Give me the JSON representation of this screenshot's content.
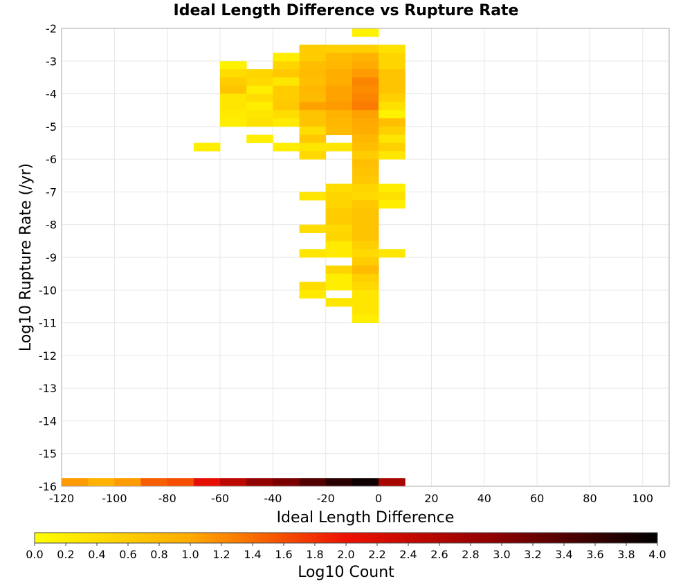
{
  "chart_data": {
    "type": "heatmap",
    "title": "Ideal Length Difference vs Rupture Rate",
    "xlabel": "Ideal Length Difference",
    "ylabel": "Log10 Rupture Rate (/yr)",
    "xlim": [
      -120,
      110
    ],
    "ylim": [
      -16,
      -2
    ],
    "xticks": [
      "-120",
      "-100",
      "-80",
      "-60",
      "-40",
      "-20",
      "0",
      "20",
      "40",
      "60",
      "80",
      "100"
    ],
    "yticks": [
      "-2",
      "-3",
      "-4",
      "-5",
      "-6",
      "-7",
      "-8",
      "-9",
      "-10",
      "-11",
      "-12",
      "-13",
      "-14",
      "-15",
      "-16"
    ],
    "x_bin_width": 10,
    "y_bin_height": 0.25,
    "grid": true,
    "colorbar": {
      "label": "Log10 Count",
      "min": 0,
      "max": 4,
      "ticks": [
        "0.0",
        "0.2",
        "0.4",
        "0.6",
        "0.8",
        "1.0",
        "1.2",
        "1.4",
        "1.6",
        "1.8",
        "2.0",
        "2.2",
        "2.4",
        "2.6",
        "2.8",
        "3.0",
        "3.2",
        "3.4",
        "3.6",
        "3.8",
        "4.0"
      ],
      "colormap": [
        "#ffff00",
        "#ffaa00",
        "#ee1100",
        "#880000",
        "#000000"
      ]
    },
    "cells": [
      {
        "x": -5,
        "y": -2.0,
        "v": 0.15
      },
      {
        "x": -25,
        "y": -2.5,
        "v": 0.6
      },
      {
        "x": -15,
        "y": -2.5,
        "v": 0.55
      },
      {
        "x": -5,
        "y": -2.5,
        "v": 0.55
      },
      {
        "x": 5,
        "y": -2.5,
        "v": 0.35
      },
      {
        "x": -35,
        "y": -2.75,
        "v": 0.2
      },
      {
        "x": -25,
        "y": -2.75,
        "v": 0.6
      },
      {
        "x": -15,
        "y": -2.75,
        "v": 0.8
      },
      {
        "x": -5,
        "y": -2.75,
        "v": 0.9
      },
      {
        "x": 5,
        "y": -2.75,
        "v": 0.5
      },
      {
        "x": -55,
        "y": -3.0,
        "v": 0.15
      },
      {
        "x": -35,
        "y": -3.0,
        "v": 0.5
      },
      {
        "x": -25,
        "y": -3.0,
        "v": 0.75
      },
      {
        "x": -15,
        "y": -3.0,
        "v": 0.85
      },
      {
        "x": -5,
        "y": -3.0,
        "v": 1.0
      },
      {
        "x": 5,
        "y": -3.0,
        "v": 0.5
      },
      {
        "x": -55,
        "y": -3.25,
        "v": 0.4
      },
      {
        "x": -45,
        "y": -3.25,
        "v": 0.5
      },
      {
        "x": -35,
        "y": -3.25,
        "v": 0.65
      },
      {
        "x": -25,
        "y": -3.25,
        "v": 0.8
      },
      {
        "x": -15,
        "y": -3.25,
        "v": 0.95
      },
      {
        "x": -5,
        "y": -3.25,
        "v": 1.1
      },
      {
        "x": 5,
        "y": -3.25,
        "v": 0.7
      },
      {
        "x": -55,
        "y": -3.5,
        "v": 0.6
      },
      {
        "x": -45,
        "y": -3.5,
        "v": 0.45
      },
      {
        "x": -35,
        "y": -3.5,
        "v": 0.3
      },
      {
        "x": -25,
        "y": -3.5,
        "v": 0.75
      },
      {
        "x": -15,
        "y": -3.5,
        "v": 0.95
      },
      {
        "x": -5,
        "y": -3.5,
        "v": 1.25
      },
      {
        "x": 5,
        "y": -3.5,
        "v": 0.7
      },
      {
        "x": -55,
        "y": -3.75,
        "v": 0.7
      },
      {
        "x": -45,
        "y": -3.75,
        "v": 0.2
      },
      {
        "x": -35,
        "y": -3.75,
        "v": 0.6
      },
      {
        "x": -25,
        "y": -3.75,
        "v": 0.85
      },
      {
        "x": -15,
        "y": -3.75,
        "v": 1.05
      },
      {
        "x": -5,
        "y": -3.75,
        "v": 1.2
      },
      {
        "x": 5,
        "y": -3.75,
        "v": 0.7
      },
      {
        "x": -55,
        "y": -4.0,
        "v": 0.3
      },
      {
        "x": -45,
        "y": -4.0,
        "v": 0.4
      },
      {
        "x": -35,
        "y": -4.0,
        "v": 0.6
      },
      {
        "x": -25,
        "y": -4.0,
        "v": 0.8
      },
      {
        "x": -15,
        "y": -4.0,
        "v": 1.05
      },
      {
        "x": -5,
        "y": -4.0,
        "v": 1.25
      },
      {
        "x": 5,
        "y": -4.0,
        "v": 0.55
      },
      {
        "x": -55,
        "y": -4.25,
        "v": 0.3
      },
      {
        "x": -45,
        "y": -4.25,
        "v": 0.2
      },
      {
        "x": -35,
        "y": -4.25,
        "v": 0.65
      },
      {
        "x": -25,
        "y": -4.25,
        "v": 1.05
      },
      {
        "x": -15,
        "y": -4.25,
        "v": 1.1
      },
      {
        "x": -5,
        "y": -4.25,
        "v": 1.3
      },
      {
        "x": 5,
        "y": -4.25,
        "v": 0.35
      },
      {
        "x": -55,
        "y": -4.5,
        "v": 0.25
      },
      {
        "x": -45,
        "y": -4.5,
        "v": 0.3
      },
      {
        "x": -35,
        "y": -4.5,
        "v": 0.4
      },
      {
        "x": -25,
        "y": -4.5,
        "v": 0.7
      },
      {
        "x": -15,
        "y": -4.5,
        "v": 0.9
      },
      {
        "x": -5,
        "y": -4.5,
        "v": 1.05
      },
      {
        "x": 5,
        "y": -4.5,
        "v": 0.15
      },
      {
        "x": -55,
        "y": -4.75,
        "v": 0.2
      },
      {
        "x": -45,
        "y": -4.75,
        "v": 0.35
      },
      {
        "x": -35,
        "y": -4.75,
        "v": 0.25
      },
      {
        "x": -25,
        "y": -4.75,
        "v": 0.7
      },
      {
        "x": -15,
        "y": -4.75,
        "v": 0.85
      },
      {
        "x": -5,
        "y": -4.75,
        "v": 1.0
      },
      {
        "x": 5,
        "y": -4.75,
        "v": 0.75
      },
      {
        "x": -25,
        "y": -5.0,
        "v": 0.4
      },
      {
        "x": -15,
        "y": -5.0,
        "v": 0.8
      },
      {
        "x": -5,
        "y": -5.0,
        "v": 0.95
      },
      {
        "x": 5,
        "y": -5.0,
        "v": 0.55
      },
      {
        "x": -45,
        "y": -5.25,
        "v": 0.2
      },
      {
        "x": -25,
        "y": -5.25,
        "v": 0.65
      },
      {
        "x": -5,
        "y": -5.25,
        "v": 0.85
      },
      {
        "x": 5,
        "y": -5.25,
        "v": 0.3
      },
      {
        "x": -65,
        "y": -5.5,
        "v": 0.2
      },
      {
        "x": -35,
        "y": -5.5,
        "v": 0.2
      },
      {
        "x": -25,
        "y": -5.5,
        "v": 0.3
      },
      {
        "x": -15,
        "y": -5.5,
        "v": 0.3
      },
      {
        "x": -5,
        "y": -5.5,
        "v": 0.75
      },
      {
        "x": 5,
        "y": -5.5,
        "v": 0.55
      },
      {
        "x": -25,
        "y": -5.75,
        "v": 0.45
      },
      {
        "x": -5,
        "y": -5.75,
        "v": 0.6
      },
      {
        "x": 5,
        "y": -5.75,
        "v": 0.3
      },
      {
        "x": -5,
        "y": -6.0,
        "v": 0.75
      },
      {
        "x": -5,
        "y": -6.25,
        "v": 0.7
      },
      {
        "x": -5,
        "y": -6.5,
        "v": 0.65
      },
      {
        "x": -15,
        "y": -6.75,
        "v": 0.4
      },
      {
        "x": -5,
        "y": -6.75,
        "v": 0.5
      },
      {
        "x": 5,
        "y": -6.75,
        "v": 0.2
      },
      {
        "x": -25,
        "y": -7.0,
        "v": 0.3
      },
      {
        "x": -15,
        "y": -7.0,
        "v": 0.5
      },
      {
        "x": -5,
        "y": -7.0,
        "v": 0.45
      },
      {
        "x": 5,
        "y": -7.0,
        "v": 0.35
      },
      {
        "x": -15,
        "y": -7.25,
        "v": 0.5
      },
      {
        "x": -5,
        "y": -7.25,
        "v": 0.65
      },
      {
        "x": 5,
        "y": -7.25,
        "v": 0.2
      },
      {
        "x": -15,
        "y": -7.5,
        "v": 0.6
      },
      {
        "x": -5,
        "y": -7.5,
        "v": 0.7
      },
      {
        "x": -15,
        "y": -7.75,
        "v": 0.6
      },
      {
        "x": -5,
        "y": -7.75,
        "v": 0.7
      },
      {
        "x": -25,
        "y": -8.0,
        "v": 0.4
      },
      {
        "x": -15,
        "y": -8.0,
        "v": 0.45
      },
      {
        "x": -5,
        "y": -8.0,
        "v": 0.7
      },
      {
        "x": -15,
        "y": -8.25,
        "v": 0.5
      },
      {
        "x": -5,
        "y": -8.25,
        "v": 0.7
      },
      {
        "x": -15,
        "y": -8.5,
        "v": 0.25
      },
      {
        "x": -5,
        "y": -8.5,
        "v": 0.55
      },
      {
        "x": -25,
        "y": -8.75,
        "v": 0.3
      },
      {
        "x": -15,
        "y": -8.75,
        "v": 0.25
      },
      {
        "x": -5,
        "y": -8.75,
        "v": 0.45
      },
      {
        "x": 5,
        "y": -8.75,
        "v": 0.3
      },
      {
        "x": -5,
        "y": -9.0,
        "v": 0.6
      },
      {
        "x": -15,
        "y": -9.25,
        "v": 0.5
      },
      {
        "x": -5,
        "y": -9.25,
        "v": 0.8
      },
      {
        "x": -15,
        "y": -9.5,
        "v": 0.2
      },
      {
        "x": -5,
        "y": -9.5,
        "v": 0.55
      },
      {
        "x": -25,
        "y": -9.75,
        "v": 0.4
      },
      {
        "x": -15,
        "y": -9.75,
        "v": 0.2
      },
      {
        "x": -5,
        "y": -9.75,
        "v": 0.45
      },
      {
        "x": -25,
        "y": -10.0,
        "v": 0.25
      },
      {
        "x": -5,
        "y": -10.0,
        "v": 0.3
      },
      {
        "x": -15,
        "y": -10.25,
        "v": 0.3
      },
      {
        "x": -5,
        "y": -10.25,
        "v": 0.3
      },
      {
        "x": -5,
        "y": -10.5,
        "v": 0.3
      },
      {
        "x": -5,
        "y": -10.75,
        "v": 0.2
      },
      {
        "x": -115,
        "y": -15.75,
        "v": 1.1
      },
      {
        "x": -105,
        "y": -15.75,
        "v": 0.9
      },
      {
        "x": -95,
        "y": -15.75,
        "v": 1.1
      },
      {
        "x": -85,
        "y": -15.75,
        "v": 1.5
      },
      {
        "x": -75,
        "y": -15.75,
        "v": 1.6
      },
      {
        "x": -65,
        "y": -15.75,
        "v": 2.1
      },
      {
        "x": -55,
        "y": -15.75,
        "v": 2.5
      },
      {
        "x": -45,
        "y": -15.75,
        "v": 2.9
      },
      {
        "x": -35,
        "y": -15.75,
        "v": 3.1
      },
      {
        "x": -25,
        "y": -15.75,
        "v": 3.4
      },
      {
        "x": -15,
        "y": -15.75,
        "v": 3.7
      },
      {
        "x": -5,
        "y": -15.75,
        "v": 3.9
      },
      {
        "x": 5,
        "y": -15.75,
        "v": 2.7
      }
    ]
  }
}
